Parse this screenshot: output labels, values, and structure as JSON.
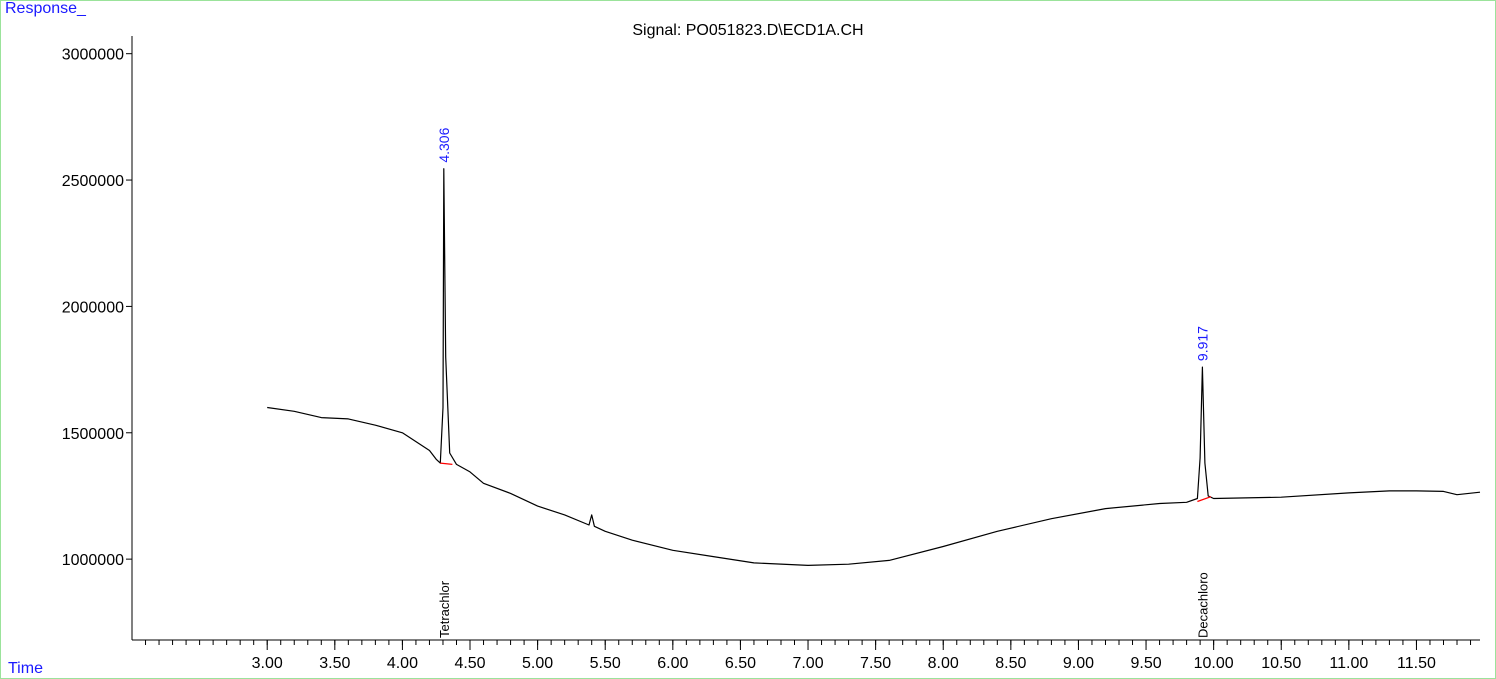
{
  "chart_data": {
    "type": "line",
    "title": "Signal: PO051823.D\\ECD1A.CH",
    "ylabel": "Response_",
    "xlabel": "Time",
    "xlim": [
      2.0,
      11.97
    ],
    "ylim": [
      680000,
      3070000
    ],
    "x_ticks": [
      "3.00",
      "3.50",
      "4.00",
      "4.50",
      "5.00",
      "5.50",
      "6.00",
      "6.50",
      "7.00",
      "7.50",
      "8.00",
      "8.50",
      "9.00",
      "9.50",
      "10.00",
      "10.50",
      "11.00",
      "11.50"
    ],
    "y_ticks": [
      "1000000",
      "1500000",
      "2000000",
      "2500000",
      "3000000"
    ],
    "grid": false,
    "series": [
      {
        "color": "#000000",
        "x": [
          3.0,
          3.2,
          3.4,
          3.6,
          3.8,
          4.0,
          4.2,
          4.25,
          4.28,
          4.3,
          4.306,
          4.32,
          4.35,
          4.4,
          4.5,
          4.6,
          4.8,
          5.0,
          5.2,
          5.38,
          5.4,
          5.42,
          5.5,
          5.7,
          6.0,
          6.3,
          6.6,
          7.0,
          7.3,
          7.6,
          8.0,
          8.4,
          8.8,
          9.2,
          9.6,
          9.8,
          9.88,
          9.9,
          9.917,
          9.935,
          9.96,
          10.0,
          10.5,
          11.0,
          11.3,
          11.5,
          11.7,
          11.8,
          11.97
        ],
        "y": [
          1600000,
          1585000,
          1560000,
          1555000,
          1530000,
          1500000,
          1430000,
          1395000,
          1380000,
          1600000,
          2545000,
          1800000,
          1420000,
          1375000,
          1345000,
          1300000,
          1260000,
          1210000,
          1175000,
          1135000,
          1175000,
          1130000,
          1110000,
          1075000,
          1035000,
          1010000,
          985000,
          975000,
          980000,
          995000,
          1050000,
          1110000,
          1160000,
          1200000,
          1220000,
          1225000,
          1240000,
          1400000,
          1760000,
          1380000,
          1250000,
          1240000,
          1245000,
          1262000,
          1270000,
          1270000,
          1268000,
          1255000,
          1265000
        ]
      }
    ],
    "baselines": [
      {
        "color": "#ff0000",
        "x": [
          4.28,
          4.37
        ],
        "y": [
          1380000,
          1375000
        ]
      },
      {
        "color": "#ff0000",
        "x": [
          9.88,
          9.98
        ],
        "y": [
          1228000,
          1247000
        ]
      }
    ],
    "peaks": [
      {
        "time_label": "4.306",
        "x": 4.306,
        "y": 2545000,
        "compound": "Tetrachlor"
      },
      {
        "time_label": "9.917",
        "x": 9.917,
        "y": 1760000,
        "compound": "Decachloro"
      }
    ],
    "colors": {
      "peak_label": "#1a1aff",
      "trace": "#000000",
      "baseline": "#ff0000",
      "frame": "#9be39b"
    }
  }
}
